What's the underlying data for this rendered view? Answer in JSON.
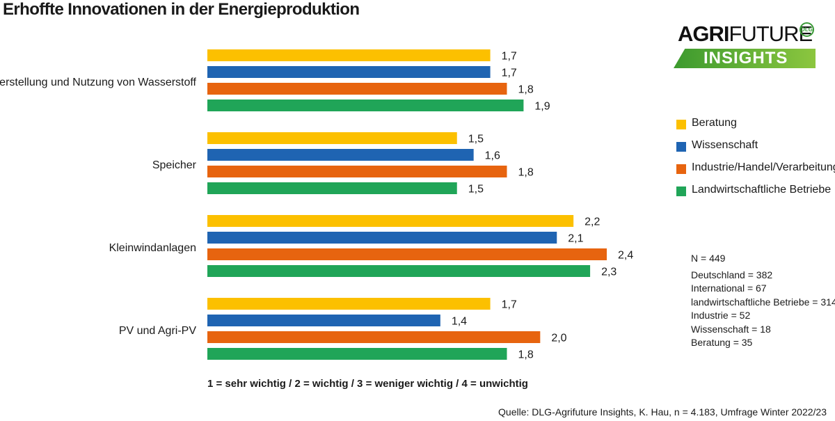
{
  "title": "Erhoffte Innovationen in der Energieproduktion",
  "logo": {
    "brand_bold": "AGRI",
    "brand_light": "FUTURE",
    "product": "INSIGHTS",
    "badge": "DLG"
  },
  "colors": {
    "Beratung": "#fcc000",
    "Wissenschaft": "#1f64b2",
    "Industrie": "#e7640f",
    "Landwirtschaft": "#20a558"
  },
  "legend": [
    {
      "label": "Beratung",
      "color": "#fcc000"
    },
    {
      "label": "Wissenschaft",
      "color": "#1f64b2"
    },
    {
      "label": "Industrie/Handel/Verarbeitung",
      "color": "#e7640f"
    },
    {
      "label": "Landwirtschaftliche Betriebe",
      "color": "#20a558"
    }
  ],
  "sample": {
    "total": "N =  449",
    "rows": [
      "Deutschland = 382",
      "International = 67",
      "landwirtschaftliche Betriebe = 314",
      "Industrie = 52",
      "Wissenschaft = 18",
      "Beratung = 35"
    ]
  },
  "scale_note": "1 = sehr wichtig / 2 = wichtig / 3 = weniger wichtig / 4 = unwichtig",
  "source": "Quelle: DLG-Agrifuture Insights, K. Hau, n = 4.183, Umfrage Winter 2022/23",
  "chart_data": {
    "type": "bar",
    "orientation": "horizontal",
    "categories": [
      "Herstellung und Nutzung von Wasserstoff",
      "Speicher",
      "Kleinwindanlagen",
      "PV und Agri-PV"
    ],
    "series": [
      {
        "name": "Beratung",
        "color": "#fcc000",
        "values": [
          1.7,
          1.5,
          2.2,
          1.7
        ],
        "labels": [
          "1,7",
          "1,5",
          "2,2",
          "1,7"
        ]
      },
      {
        "name": "Wissenschaft",
        "color": "#1f64b2",
        "values": [
          1.7,
          1.6,
          2.1,
          1.4
        ],
        "labels": [
          "1,7",
          "1,6",
          "2,1",
          "1,4"
        ]
      },
      {
        "name": "Industrie/Handel/Verarbeitung",
        "color": "#e7640f",
        "values": [
          1.8,
          1.8,
          2.4,
          2.0
        ],
        "labels": [
          "1,8",
          "1,8",
          "2,4",
          "2,0"
        ]
      },
      {
        "name": "Landwirtschaftliche Betriebe",
        "color": "#20a558",
        "values": [
          1.9,
          1.5,
          2.3,
          1.8
        ],
        "labels": [
          "1,9",
          "1,5",
          "2,3",
          "1,8"
        ]
      }
    ],
    "xlim": [
      0,
      2.4
    ],
    "grid": false,
    "legend_position": "right"
  }
}
